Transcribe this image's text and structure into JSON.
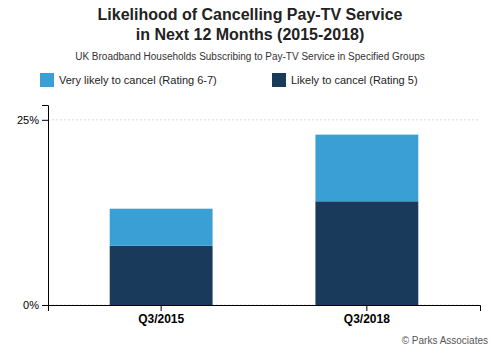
{
  "chart_data": {
    "type": "bar",
    "stacked": true,
    "title": [
      "Likelihood of Cancelling Pay-TV Service",
      "in Next 12 Months (2015-2018)"
    ],
    "subtitle": "UK Broadband Households Subscribing to Pay-TV Service in Specified Groups",
    "annotations": [
      "© Parks Associates"
    ],
    "categories": [
      "Q3/2015",
      "Q3/2018"
    ],
    "series": [
      {
        "name": "Likely to cancel (Rating 5)",
        "color": "#1a3a5c",
        "values": [
          8,
          14
        ]
      },
      {
        "name": "Very likely to cancel (Rating 6-7)",
        "color": "#3a9fd4",
        "values": [
          5,
          9
        ]
      }
    ],
    "ylim": [
      0,
      27
    ],
    "yticks": [
      {
        "value": 0,
        "label": "0%"
      },
      {
        "value": 25,
        "label": "25%"
      }
    ],
    "grid": true
  }
}
